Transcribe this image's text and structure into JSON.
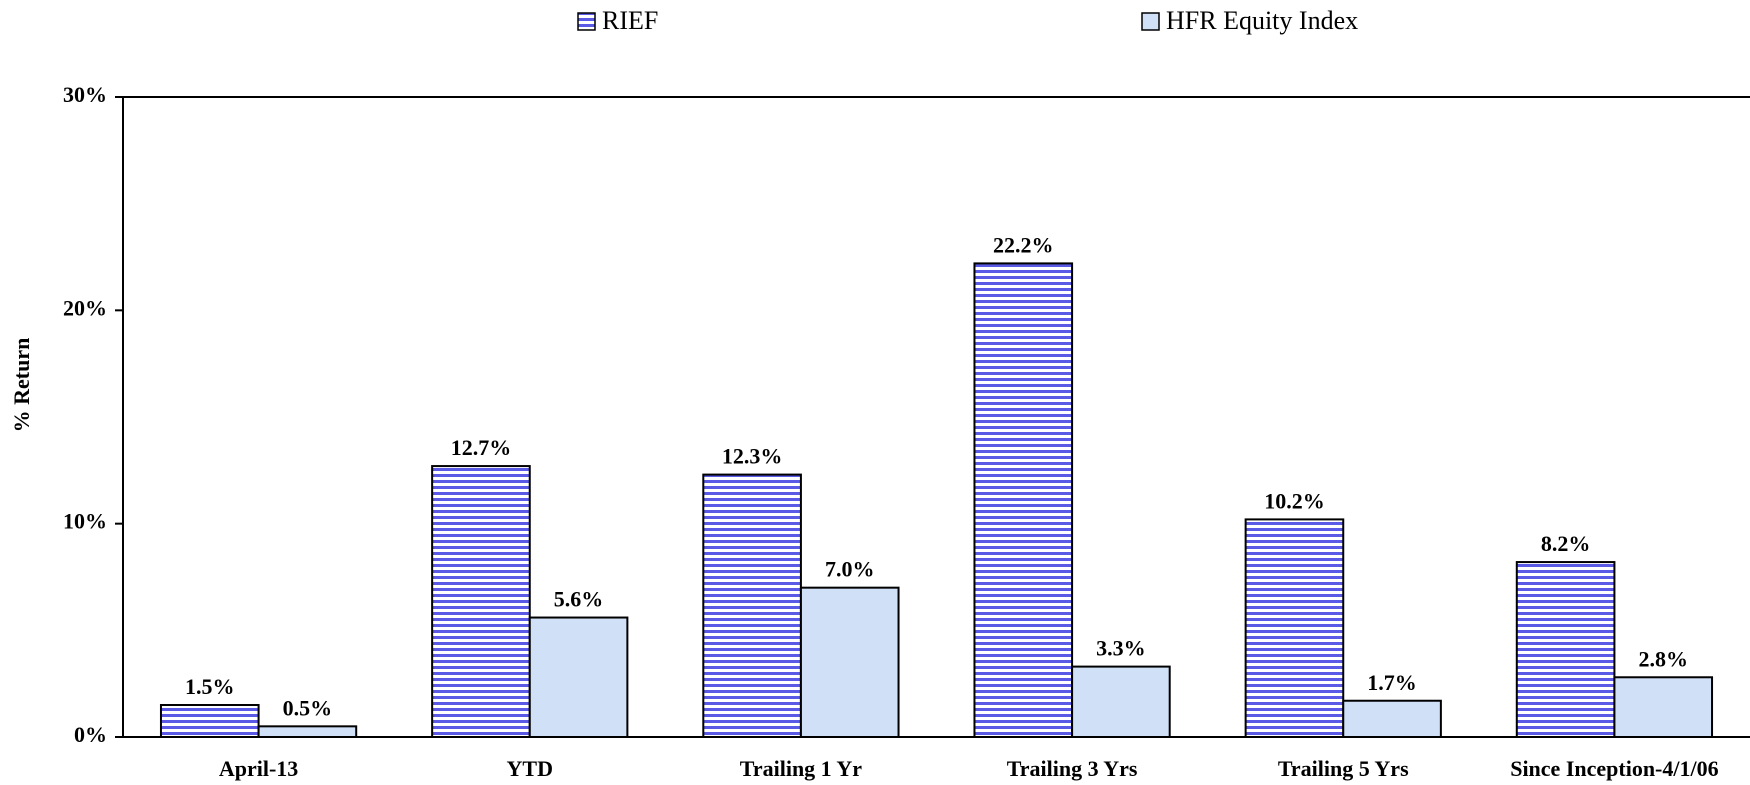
{
  "chart_data": {
    "type": "bar",
    "y_label": "% Return",
    "categories": [
      "April-13",
      "YTD",
      "Trailing 1 Yr",
      "Trailing 3 Yrs",
      "Trailing 5 Yrs",
      "Since Inception-4/1/06"
    ],
    "series": [
      {
        "name": "RIEF",
        "color": "#5a5ae6",
        "hatch": "horizontal",
        "values": [
          1.5,
          12.7,
          12.3,
          22.2,
          10.2,
          8.2
        ],
        "value_labels": [
          "1.5%",
          "12.7%",
          "12.3%",
          "22.2%",
          "10.2%",
          "8.2%"
        ]
      },
      {
        "name": "HFR Equity Index",
        "color": "#cfe0f7",
        "values": [
          0.5,
          5.6,
          7.0,
          3.3,
          1.7,
          2.8
        ],
        "value_labels": [
          "0.5%",
          "5.6%",
          "7.0%",
          "3.3%",
          "1.7%",
          "2.8%"
        ]
      }
    ],
    "ylim": [
      0,
      30
    ],
    "yticks": [
      {
        "value": 0,
        "label": "0%"
      },
      {
        "value": 10,
        "label": "10%"
      },
      {
        "value": 20,
        "label": "20%"
      },
      {
        "value": 30,
        "label": "30%"
      }
    ],
    "legend": "top",
    "grid": false
  }
}
